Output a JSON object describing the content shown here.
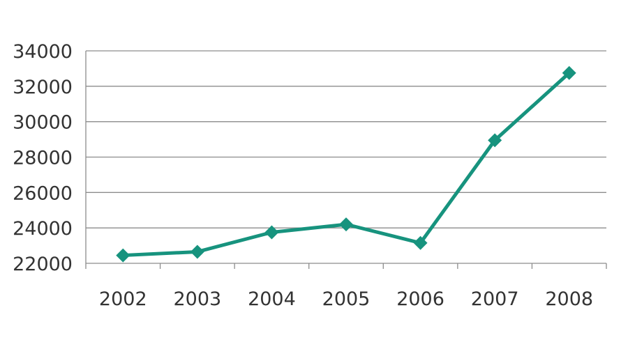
{
  "chart_data": {
    "type": "line",
    "title": "",
    "xlabel": "",
    "ylabel": "",
    "categories": [
      "2002",
      "2003",
      "2004",
      "2005",
      "2006",
      "2007",
      "2008"
    ],
    "series": [
      {
        "values": [
          22450,
          22650,
          23750,
          24200,
          23150,
          28950,
          32750
        ],
        "color": "#17937e",
        "marker": "diamond"
      }
    ],
    "ylim": [
      22000,
      34000
    ],
    "yticks": [
      "22000",
      "24000",
      "26000",
      "28000",
      "30000",
      "32000",
      "34000"
    ],
    "grid": true,
    "legend": "none"
  }
}
